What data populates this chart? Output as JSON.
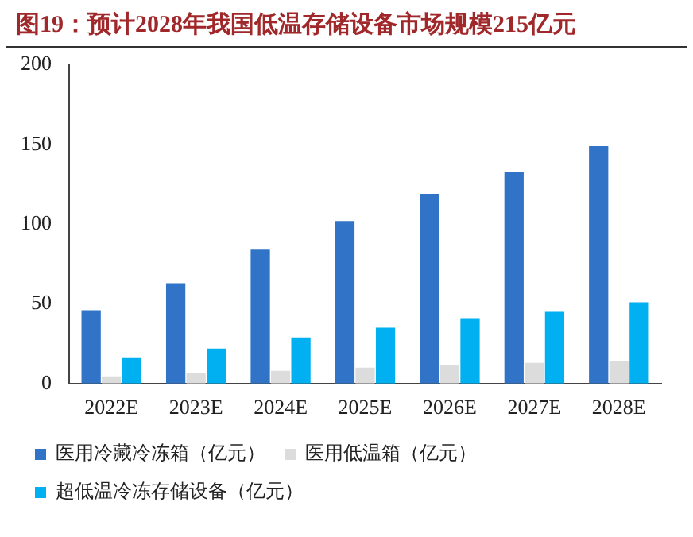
{
  "chart_data": {
    "type": "bar",
    "title": "图19：预计2028年我国低温存储设备市场规模215亿元",
    "categories": [
      "2022E",
      "2023E",
      "2024E",
      "2025E",
      "2026E",
      "2027E",
      "2028E"
    ],
    "series": [
      {
        "name": "医用冷藏冷冻箱（亿元）",
        "color": "#3174c7",
        "values": [
          46,
          63,
          84,
          102,
          119,
          133,
          149
        ]
      },
      {
        "name": "医用低温箱（亿元）",
        "color": "#dcdcdc",
        "values": [
          4.5,
          6.5,
          8,
          10,
          11.5,
          13,
          14
        ]
      },
      {
        "name": "超低温冷冻存储设备（亿元）",
        "color": "#00b0f0",
        "values": [
          16,
          22,
          29,
          35,
          41,
          45,
          51
        ]
      }
    ],
    "ylim": [
      0,
      200
    ],
    "yticks": [
      0,
      50,
      100,
      150,
      200
    ],
    "grid": false,
    "legend": "bottom"
  }
}
